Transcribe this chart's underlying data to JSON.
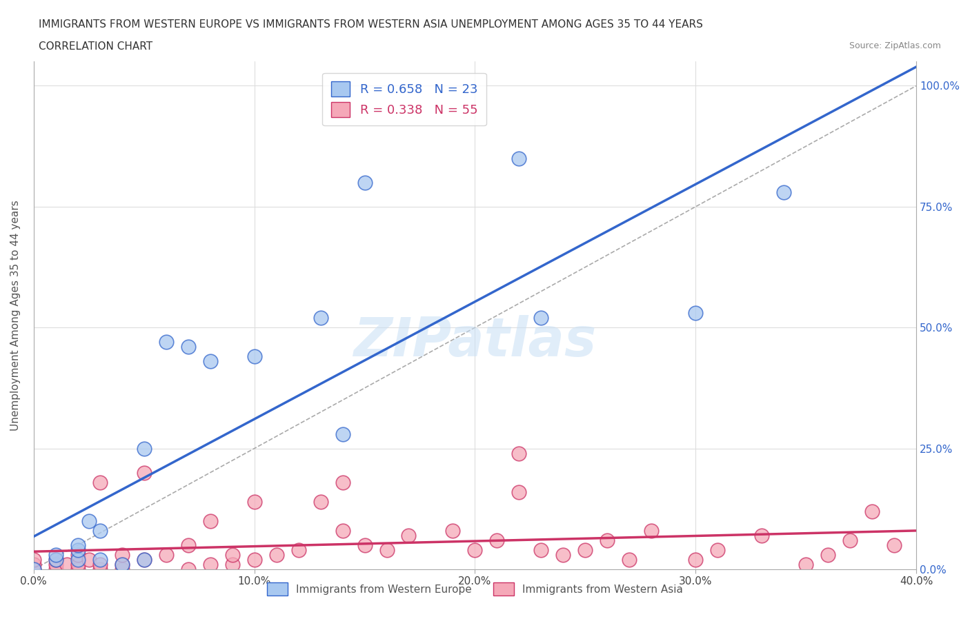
{
  "title_line1": "IMMIGRANTS FROM WESTERN EUROPE VS IMMIGRANTS FROM WESTERN ASIA UNEMPLOYMENT AMONG AGES 35 TO 44 YEARS",
  "title_line2": "CORRELATION CHART",
  "source_text": "Source: ZipAtlas.com",
  "ylabel": "Unemployment Among Ages 35 to 44 years",
  "xlim": [
    0.0,
    0.4
  ],
  "ylim": [
    0.0,
    1.05
  ],
  "xtick_labels": [
    "0.0%",
    "10.0%",
    "20.0%",
    "30.0%",
    "40.0%"
  ],
  "xtick_vals": [
    0.0,
    0.1,
    0.2,
    0.3,
    0.4
  ],
  "ytick_labels_right": [
    "0.0%",
    "25.0%",
    "50.0%",
    "75.0%",
    "100.0%"
  ],
  "ytick_vals": [
    0.0,
    0.25,
    0.5,
    0.75,
    1.0
  ],
  "blue_R": 0.658,
  "blue_N": 23,
  "pink_R": 0.338,
  "pink_N": 55,
  "blue_color": "#a8c8f0",
  "blue_line_color": "#3366cc",
  "pink_color": "#f5a8b8",
  "pink_line_color": "#cc3366",
  "blue_scatter_x": [
    0.0,
    0.01,
    0.01,
    0.02,
    0.02,
    0.02,
    0.025,
    0.03,
    0.03,
    0.04,
    0.05,
    0.05,
    0.06,
    0.07,
    0.08,
    0.1,
    0.13,
    0.14,
    0.15,
    0.22,
    0.23,
    0.3,
    0.34
  ],
  "blue_scatter_y": [
    0.0,
    0.02,
    0.03,
    0.02,
    0.04,
    0.05,
    0.1,
    0.02,
    0.08,
    0.01,
    0.02,
    0.25,
    0.47,
    0.46,
    0.43,
    0.44,
    0.52,
    0.28,
    0.8,
    0.85,
    0.52,
    0.53,
    0.78
  ],
  "pink_scatter_x": [
    0.0,
    0.0,
    0.0,
    0.01,
    0.01,
    0.01,
    0.015,
    0.02,
    0.02,
    0.02,
    0.025,
    0.03,
    0.03,
    0.03,
    0.04,
    0.04,
    0.04,
    0.05,
    0.05,
    0.06,
    0.07,
    0.07,
    0.08,
    0.08,
    0.09,
    0.09,
    0.1,
    0.1,
    0.11,
    0.12,
    0.13,
    0.14,
    0.14,
    0.15,
    0.16,
    0.17,
    0.19,
    0.2,
    0.21,
    0.22,
    0.22,
    0.23,
    0.24,
    0.25,
    0.26,
    0.27,
    0.28,
    0.3,
    0.31,
    0.33,
    0.35,
    0.36,
    0.37,
    0.38,
    0.39
  ],
  "pink_scatter_y": [
    0.0,
    0.01,
    0.02,
    0.0,
    0.01,
    0.02,
    0.01,
    0.0,
    0.01,
    0.03,
    0.02,
    0.0,
    0.01,
    0.18,
    0.0,
    0.01,
    0.03,
    0.02,
    0.2,
    0.03,
    0.0,
    0.05,
    0.01,
    0.1,
    0.01,
    0.03,
    0.02,
    0.14,
    0.03,
    0.04,
    0.14,
    0.08,
    0.18,
    0.05,
    0.04,
    0.07,
    0.08,
    0.04,
    0.06,
    0.24,
    0.16,
    0.04,
    0.03,
    0.04,
    0.06,
    0.02,
    0.08,
    0.02,
    0.04,
    0.07,
    0.01,
    0.03,
    0.06,
    0.12,
    0.05
  ],
  "watermark_text": "ZIPatlas",
  "background_color": "#ffffff",
  "grid_color": "#dddddd"
}
